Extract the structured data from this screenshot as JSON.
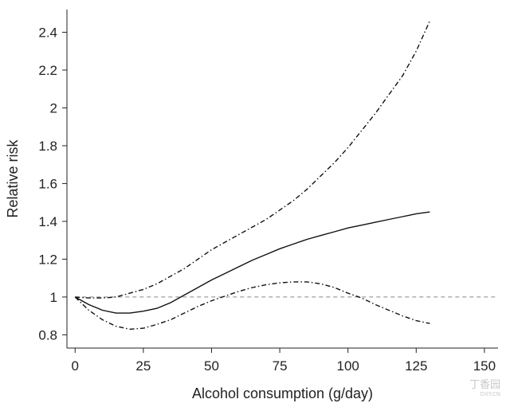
{
  "chart_data": {
    "type": "line",
    "title": "",
    "xlabel": "Alcohol consumption (g/day)",
    "ylabel": "Relative risk",
    "xlim": [
      -3,
      155
    ],
    "ylim": [
      0.73,
      2.52
    ],
    "xticks": [
      0,
      25,
      50,
      75,
      100,
      125,
      150
    ],
    "yticks": [
      0.8,
      1,
      1.2,
      1.4,
      1.6,
      1.8,
      2,
      2.2,
      2.4
    ],
    "ytick_labels": [
      "0.8",
      "1",
      "1.2",
      "1.4",
      "1.6",
      "1.8",
      "2",
      "2.2",
      "2.4"
    ],
    "grid": false,
    "legend": "none",
    "reference_line": {
      "y": 1,
      "style": "dashed",
      "color": "#888888"
    },
    "series": [
      {
        "style": "solid",
        "color": "#111111",
        "x": [
          0,
          5,
          10,
          15,
          20,
          25,
          30,
          35,
          40,
          45,
          50,
          55,
          60,
          65,
          70,
          75,
          80,
          85,
          90,
          95,
          100,
          105,
          110,
          115,
          120,
          125,
          130
        ],
        "y": [
          1.0,
          0.96,
          0.93,
          0.915,
          0.915,
          0.925,
          0.94,
          0.97,
          1.01,
          1.05,
          1.09,
          1.125,
          1.16,
          1.195,
          1.225,
          1.255,
          1.28,
          1.305,
          1.325,
          1.345,
          1.365,
          1.38,
          1.395,
          1.41,
          1.425,
          1.44,
          1.45
        ]
      },
      {
        "style": "dashdot",
        "color": "#111111",
        "x": [
          0,
          5,
          10,
          15,
          20,
          25,
          30,
          35,
          40,
          45,
          50,
          55,
          60,
          65,
          70,
          75,
          80,
          85,
          90,
          95,
          100,
          105,
          110,
          115,
          120,
          125,
          130
        ],
        "y": [
          1.0,
          0.995,
          0.995,
          1.0,
          1.02,
          1.04,
          1.07,
          1.11,
          1.15,
          1.2,
          1.25,
          1.29,
          1.33,
          1.37,
          1.41,
          1.46,
          1.51,
          1.57,
          1.64,
          1.71,
          1.79,
          1.88,
          1.97,
          2.07,
          2.17,
          2.3,
          2.46
        ]
      },
      {
        "style": "dashdot",
        "color": "#111111",
        "x": [
          0,
          5,
          10,
          15,
          20,
          25,
          30,
          35,
          40,
          45,
          50,
          55,
          60,
          65,
          70,
          75,
          80,
          85,
          90,
          95,
          100,
          105,
          110,
          115,
          120,
          125,
          130
        ],
        "y": [
          1.0,
          0.93,
          0.88,
          0.845,
          0.83,
          0.835,
          0.855,
          0.88,
          0.915,
          0.95,
          0.98,
          1.005,
          1.03,
          1.05,
          1.065,
          1.075,
          1.08,
          1.08,
          1.07,
          1.05,
          1.02,
          0.995,
          0.96,
          0.93,
          0.9,
          0.875,
          0.86
        ]
      }
    ]
  },
  "watermark": {
    "text": "丁香园",
    "sub": "DXY.CN"
  }
}
